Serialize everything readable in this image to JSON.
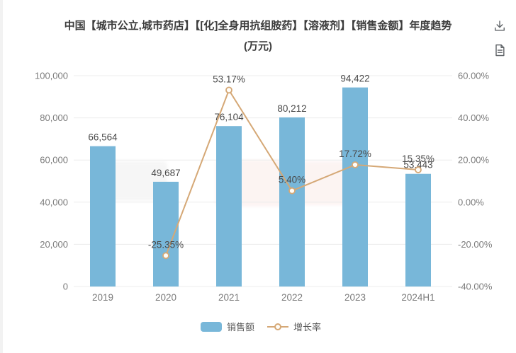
{
  "title": {
    "line1": "中国【城市公立,城市药店】【[化]全身用抗组胺药】【溶液剂】【销售金额】年度趋势",
    "line2": "(万元)"
  },
  "toolbar": {
    "download_tooltip": "下载",
    "report_tooltip": "报告"
  },
  "chart_data": {
    "type": "bar",
    "subtype": "bar-line-combo",
    "categories": [
      "2019",
      "2020",
      "2021",
      "2022",
      "2023",
      "2024H1"
    ],
    "series": [
      {
        "name": "销售额",
        "type": "bar",
        "axis": "left",
        "color": "#78b7d9",
        "values": [
          66564,
          49687,
          76104,
          80212,
          94422,
          53443
        ],
        "labels": [
          "66,564",
          "49,687",
          "76,104",
          "80,212",
          "94,422",
          "53,443"
        ]
      },
      {
        "name": "增长率",
        "type": "line",
        "axis": "right",
        "color": "#d5a876",
        "values": [
          null,
          -25.35,
          53.17,
          5.4,
          17.72,
          15.35
        ],
        "labels": [
          null,
          "-25.35%",
          "53.17%",
          "5.40%",
          "17.72%",
          "15.35%"
        ]
      }
    ],
    "left_axis": {
      "title": "",
      "min": 0,
      "max": 100000,
      "ticks": [
        "100,000",
        "80,000",
        "60,000",
        "40,000",
        "20,000",
        "0"
      ]
    },
    "right_axis": {
      "title": "",
      "min": -40,
      "max": 60,
      "ticks": [
        "60.00%",
        "40.00%",
        "20.00%",
        "0.00%",
        "-20.00%",
        "-40.00%"
      ]
    },
    "grid": true,
    "legend_position": "bottom",
    "legend": [
      {
        "label": "销售额",
        "marker": "bar-swatch"
      },
      {
        "label": "增长率",
        "marker": "line-circle"
      }
    ],
    "colors": {
      "bar": "#78b7d9",
      "line": "#d5a876",
      "axis_text": "#7c7c7c",
      "data_label": "#4a4a4a",
      "gridline": "#ececec",
      "title_text": "#3d3d3d"
    }
  }
}
